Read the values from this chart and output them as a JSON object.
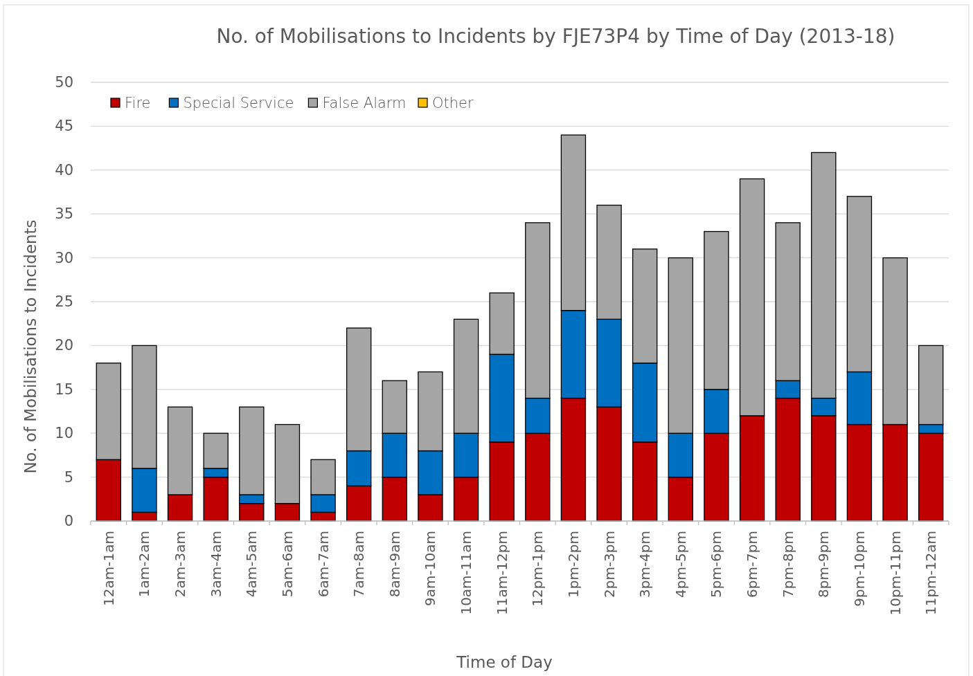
{
  "chart_data": {
    "type": "bar",
    "title": "No. of Mobilisations to Incidents by FJE73P4 by Time of Day (2013-18)",
    "xlabel": "Time of Day",
    "ylabel": "No. of Mobilisations to Incidents",
    "categories": [
      "12am-1am",
      "1am-2am",
      "2am-3am",
      "3am-4am",
      "4am-5am",
      "5am-6am",
      "6am-7am",
      "7am-8am",
      "8am-9am",
      "9am-10am",
      "10am-11am",
      "11am-12pm",
      "12pm-1pm",
      "1pm-2pm",
      "2pm-3pm",
      "3pm-4pm",
      "4pm-5pm",
      "5pm-6pm",
      "6pm-7pm",
      "7pm-8pm",
      "8pm-9pm",
      "9pm-10pm",
      "10pm-11pm",
      "11pm-12am"
    ],
    "series": [
      {
        "name": "Fire",
        "color": "#c00000",
        "values": [
          7,
          1,
          3,
          5,
          2,
          2,
          1,
          4,
          5,
          3,
          5,
          9,
          10,
          14,
          13,
          9,
          5,
          10,
          12,
          14,
          12,
          11,
          11,
          10
        ]
      },
      {
        "name": "Special Service",
        "color": "#0070c0",
        "values": [
          0,
          5,
          0,
          1,
          1,
          0,
          2,
          4,
          5,
          5,
          5,
          10,
          4,
          10,
          10,
          9,
          5,
          5,
          0,
          2,
          2,
          6,
          0,
          1
        ]
      },
      {
        "name": "False Alarm",
        "color": "#a5a5a5",
        "values": [
          11,
          14,
          10,
          4,
          10,
          9,
          4,
          14,
          6,
          9,
          13,
          7,
          20,
          20,
          13,
          13,
          20,
          18,
          27,
          18,
          28,
          20,
          19,
          9
        ]
      },
      {
        "name": "Other",
        "color": "#ffc000",
        "values": [
          0,
          0,
          0,
          0,
          0,
          0,
          0,
          0,
          0,
          0,
          0,
          0,
          0,
          0,
          0,
          0,
          0,
          0,
          0,
          0,
          0,
          0,
          0,
          0
        ]
      }
    ],
    "stacked": true,
    "ylim": [
      0,
      50
    ],
    "yticks": [
      0,
      5,
      10,
      15,
      20,
      25,
      30,
      35,
      40,
      45,
      50
    ],
    "grid": "y",
    "legend": "top left"
  }
}
